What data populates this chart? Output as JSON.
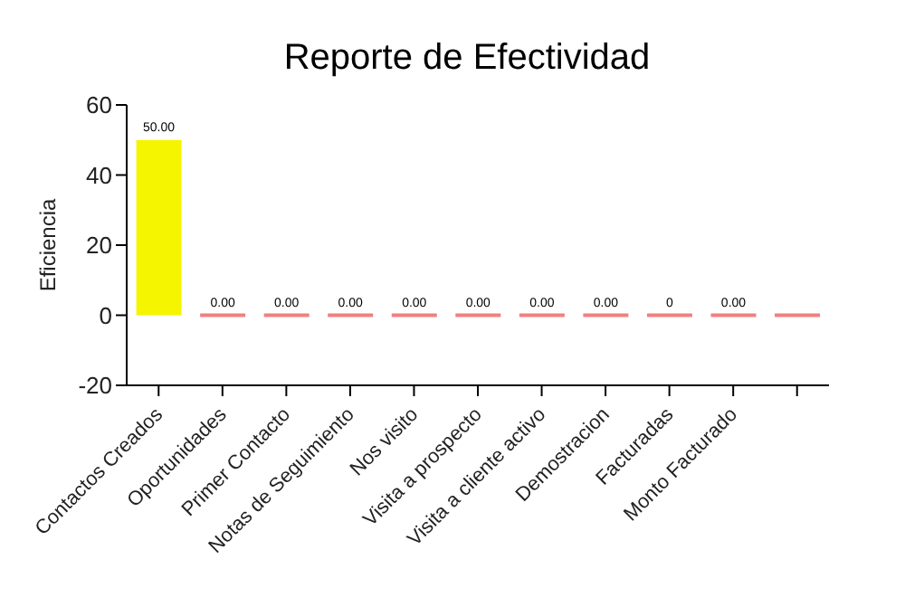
{
  "chart_data": {
    "type": "bar",
    "title": "Reporte de Efectividad",
    "ylabel": "Eficiencia",
    "categories": [
      "Contactos Creados",
      "Oportunidades",
      "Primer Contacto",
      "Notas de Seguimiento",
      "Nos visito",
      "Visita a prospecto",
      "Visita a cliente activo",
      "Demostracion",
      "Facturadas",
      "Monto Facturado",
      null
    ],
    "values": [
      50,
      0,
      0,
      0,
      0,
      0,
      0,
      0,
      0,
      0,
      0
    ],
    "colors": [
      "#f5f500",
      "#f08080",
      "#f08080",
      "#f08080",
      "#f08080",
      "#f08080",
      "#f08080",
      "#f08080",
      "#f08080",
      "#f08080",
      "#f08080"
    ],
    "value_labels": [
      "50.00",
      "0.00",
      "0.00",
      "0.00",
      "0.00",
      "0.00",
      "0.00",
      "0.00",
      "0",
      "0.00",
      null
    ],
    "ylim": [
      -20,
      60
    ],
    "yticks": [
      -20,
      0,
      20,
      40,
      60
    ],
    "grid": false
  }
}
